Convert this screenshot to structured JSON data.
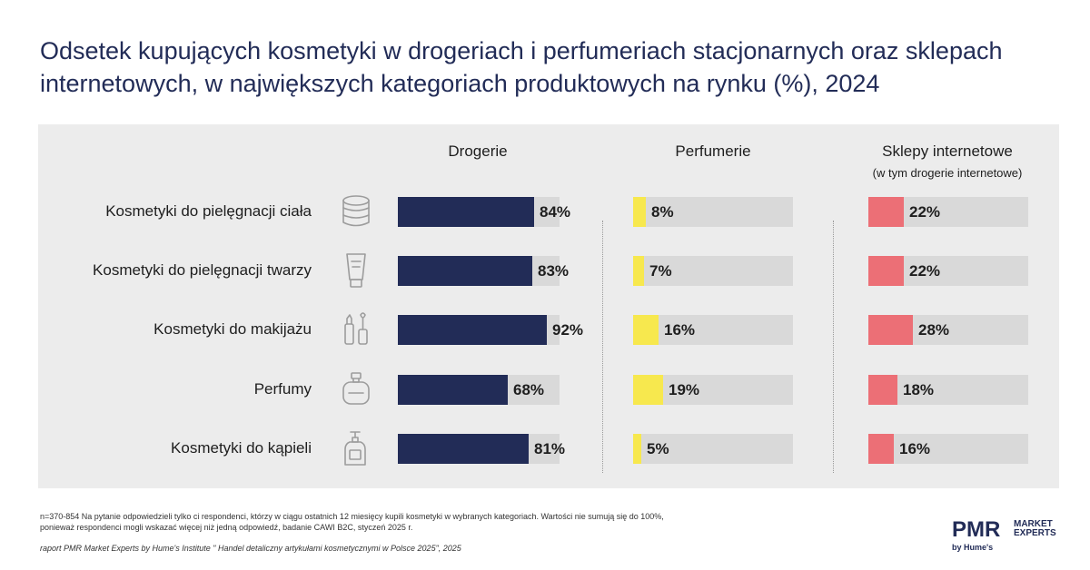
{
  "title": "Odsetek kupujących kosmetyki w drogeriach i perfumeriach stacjonarnych oraz sklepach internetowych, w największych kategoriach produktowych na rynku (%), 2024",
  "colors": {
    "drogerie": "#222c57",
    "perfumerie": "#f7e84e",
    "sklepy": "#ec6f76",
    "track": "#d9d9d9",
    "panel": "#ececec"
  },
  "chart_data": {
    "type": "bar",
    "orientation": "horizontal",
    "unit": "%",
    "xlim": [
      0,
      100
    ],
    "categories": [
      "Kosmetyki do pielęgnacji ciała",
      "Kosmetyki do pielęgnacji twarzy",
      "Kosmetyki do makijażu",
      "Perfumy",
      "Kosmetyki do kąpieli"
    ],
    "icons": [
      "jar-icon",
      "tube-icon",
      "makeup-icon",
      "perfume-bottle-icon",
      "pump-bottle-icon"
    ],
    "series": [
      {
        "name": "Drogerie",
        "subtitle": "",
        "values": [
          84,
          83,
          92,
          68,
          81
        ],
        "value_labels": [
          "84%",
          "83%",
          "92%",
          "68%",
          "81%"
        ]
      },
      {
        "name": "Perfumerie",
        "subtitle": "",
        "values": [
          8,
          7,
          16,
          19,
          5
        ],
        "value_labels": [
          "8%",
          "7%",
          "16%",
          "19%",
          "5%"
        ]
      },
      {
        "name": "Sklepy internetowe",
        "subtitle": "(w tym drogerie internetowe)",
        "values": [
          22,
          22,
          28,
          18,
          16
        ],
        "value_labels": [
          "22%",
          "22%",
          "28%",
          "18%",
          "16%"
        ]
      }
    ]
  },
  "footnote_line1": "n=370-854 Na pytanie odpowiedzieli tylko ci respondenci, którzy w ciągu ostatnich 12 miesięcy kupili kosmetyki w wybranych kategoriach. Wartości nie sumują się do 100%,",
  "footnote_line2": "ponieważ respondenci mogli wskazać więcej niż jedną odpowiedź, badanie CAWI B2C, styczeń 2025 r.",
  "source": "raport PMR Market Experts by Hume's Institute \" Handel detaliczny artykułami kosmetycznymi w Polsce 2025\", 2025",
  "logo": {
    "main": "PMR",
    "line1": "MARKET",
    "line2": "EXPERTS",
    "by": "by Hume's"
  }
}
